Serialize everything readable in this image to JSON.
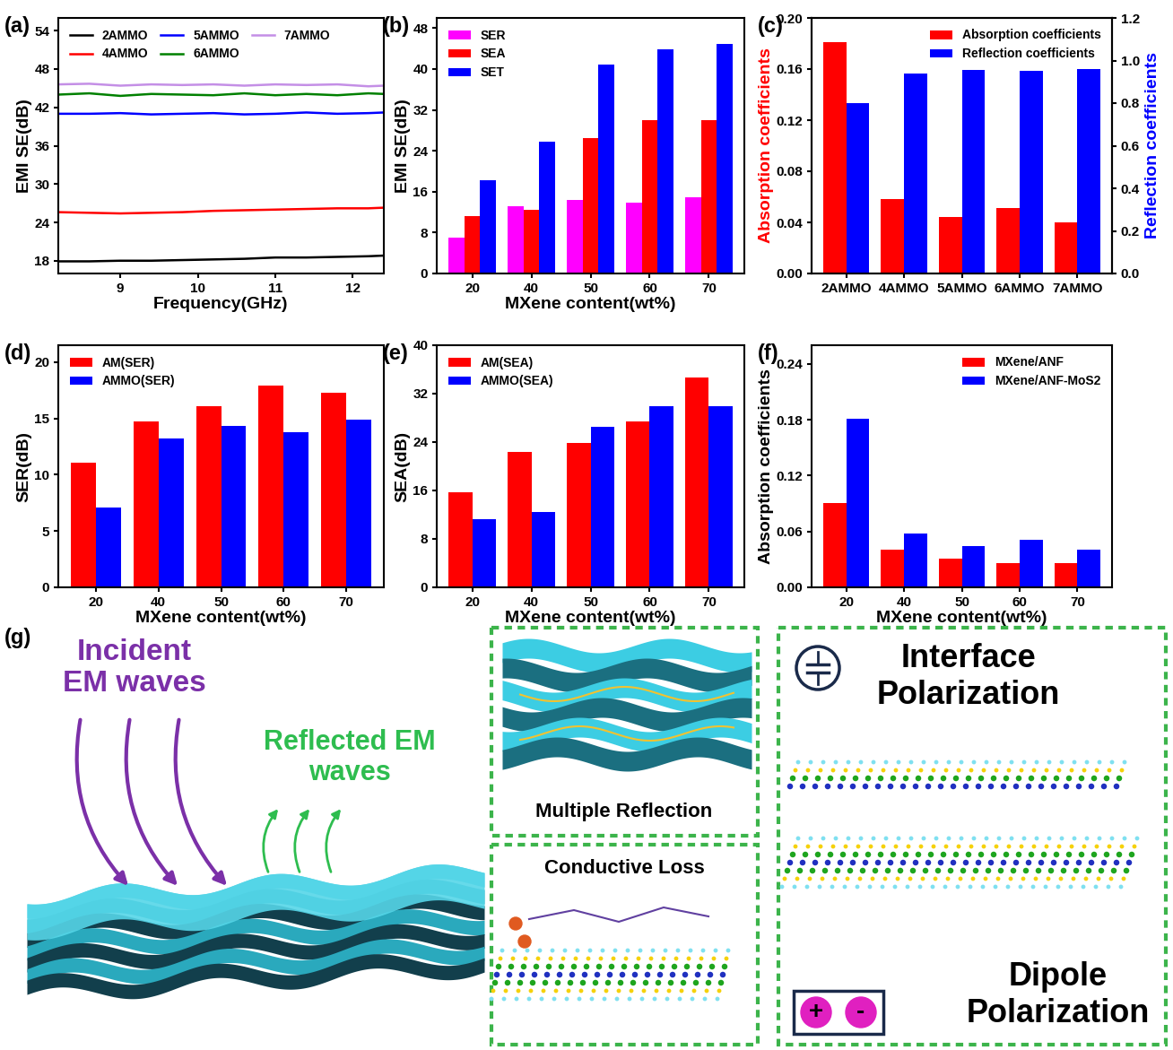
{
  "chart_data": [
    {
      "panel_label": "(a)",
      "type": "line",
      "xlabel": "Frequency(GHz)",
      "ylabel": "EMI SE(dB)",
      "x": [
        8.2,
        8.6,
        9.0,
        9.4,
        9.8,
        10.2,
        10.6,
        11.0,
        11.4,
        11.8,
        12.2,
        12.4
      ],
      "series": [
        {
          "name": "2AMMO",
          "color": "#000000",
          "line_style": "solid",
          "values": [
            17.9,
            17.9,
            18.0,
            18.0,
            18.1,
            18.2,
            18.3,
            18.5,
            18.5,
            18.6,
            18.7,
            18.8
          ]
        },
        {
          "name": "4AMMO",
          "color": "#ff0000",
          "line_style": "solid",
          "values": [
            25.6,
            25.5,
            25.4,
            25.5,
            25.6,
            25.8,
            25.9,
            26.0,
            26.1,
            26.2,
            26.2,
            26.3
          ]
        },
        {
          "name": "5AMMO",
          "color": "#0000ff",
          "line_style": "solid",
          "values": [
            41.0,
            41.0,
            41.1,
            40.9,
            41.0,
            41.1,
            40.9,
            41.0,
            41.2,
            41.0,
            41.1,
            41.2
          ]
        },
        {
          "name": "6AMMO",
          "color": "#008000",
          "line_style": "solid",
          "values": [
            44.0,
            44.2,
            43.8,
            44.1,
            44.0,
            43.9,
            44.2,
            43.9,
            44.1,
            43.9,
            44.2,
            44.1
          ]
        },
        {
          "name": "7AMMO",
          "color": "#c48fe6",
          "line_style": "solid",
          "values": [
            45.6,
            45.7,
            45.4,
            45.6,
            45.5,
            45.6,
            45.4,
            45.6,
            45.5,
            45.6,
            45.3,
            45.4
          ]
        }
      ],
      "xlim": [
        8.2,
        12.4
      ],
      "xticks": [
        9,
        10,
        11,
        12
      ],
      "ylim": [
        16,
        56
      ],
      "yticks": [
        18,
        24,
        30,
        36,
        42,
        48,
        54
      ],
      "legend": "upper left"
    },
    {
      "panel_label": "(b)",
      "type": "bar",
      "xlabel": "MXene content(wt%)",
      "ylabel": "EMI SE(dB)",
      "categories": [
        "20",
        "40",
        "50",
        "60",
        "70"
      ],
      "series": [
        {
          "name": "SER",
          "color": "#ff00ff",
          "values": [
            7.0,
            13.2,
            14.3,
            13.8,
            14.9
          ]
        },
        {
          "name": "SEA",
          "color": "#ff0000",
          "values": [
            11.3,
            12.5,
            26.5,
            30.0,
            30.0
          ]
        },
        {
          "name": "SET",
          "color": "#0000ff",
          "values": [
            18.3,
            25.8,
            40.8,
            43.8,
            45.0
          ]
        }
      ],
      "ylim": [
        0,
        50
      ],
      "yticks": [
        0,
        8,
        16,
        24,
        32,
        40,
        48
      ],
      "legend": "upper left"
    },
    {
      "panel_label": "(c)",
      "type": "bar",
      "ylabel": "Absorption coefficients",
      "y2label": "Reflection coefficients",
      "categories": [
        "2AMMO",
        "4AMMO",
        "5AMMO",
        "6AMMO",
        "7AMMO"
      ],
      "series": [
        {
          "name": "Absorption coefficients",
          "color": "#ff0000",
          "values": [
            0.181,
            0.058,
            0.044,
            0.051,
            0.04
          ]
        },
        {
          "name": "Reflection coefficients",
          "color": "#0000ff",
          "axis": "y2",
          "values": [
            0.8,
            0.94,
            0.955,
            0.95,
            0.96
          ]
        }
      ],
      "ylim": [
        0,
        0.2
      ],
      "yticks": [
        {
          "value": 0,
          "label": "0.00"
        },
        {
          "value": 0.04,
          "label": "0.04"
        },
        {
          "value": 0.08,
          "label": "0.08"
        },
        {
          "value": 0.12,
          "label": "0.12"
        },
        {
          "value": 0.16,
          "label": "0.16"
        },
        {
          "value": 0.2,
          "label": "0.20"
        }
      ],
      "y2lim": [
        0,
        1.2
      ],
      "y2ticks": [
        {
          "value": 0,
          "label": "0.0"
        },
        0.2,
        0.4,
        0.6,
        0.8,
        {
          "value": 1,
          "label": "1.0"
        },
        1.2
      ],
      "legend": "upper right"
    },
    {
      "panel_label": "(d)",
      "type": "bar",
      "xlabel": "MXene content(wt%)",
      "ylabel": "SER(dB)",
      "categories": [
        "20",
        "40",
        "50",
        "60",
        "70"
      ],
      "series": [
        {
          "name": "AM(SER)",
          "color": "#ff0000",
          "values": [
            11.1,
            14.7,
            16.1,
            17.9,
            17.3
          ]
        },
        {
          "name": "AMMO(SER)",
          "color": "#0000ff",
          "values": [
            7.1,
            13.2,
            14.3,
            13.8,
            14.9
          ]
        }
      ],
      "ylim": [
        0,
        21.5
      ],
      "yticks": [
        0,
        5,
        10,
        15,
        20
      ],
      "legend": "upper left"
    },
    {
      "panel_label": "(e)",
      "type": "bar",
      "xlabel": "MXene content(wt%)",
      "ylabel": "SEA(dB)",
      "categories": [
        "20",
        "40",
        "50",
        "60",
        "70"
      ],
      "series": [
        {
          "name": "AM(SEA)",
          "color": "#ff0000",
          "values": [
            15.7,
            22.3,
            23.9,
            27.4,
            34.7
          ]
        },
        {
          "name": "AMMO(SEA)",
          "color": "#0000ff",
          "values": [
            11.3,
            12.5,
            26.5,
            30.0,
            30.0
          ]
        }
      ],
      "ylim": [
        0,
        40
      ],
      "yticks": [
        0,
        8,
        16,
        24,
        32,
        40
      ],
      "legend": "upper left"
    },
    {
      "panel_label": "(f)",
      "type": "bar",
      "xlabel": "MXene content(wt%)",
      "ylabel": "Absorption coefficients",
      "categories": [
        "20",
        "40",
        "50",
        "60",
        "70"
      ],
      "series": [
        {
          "name": "MXene/ANF",
          "color": "#ff0000",
          "values": [
            0.091,
            0.04,
            0.031,
            0.026,
            0.026
          ]
        },
        {
          "name": "MXene/ANF-MoS2",
          "color": "#0000ff",
          "values": [
            0.181,
            0.058,
            0.044,
            0.051,
            0.04
          ]
        }
      ],
      "ylim": [
        0,
        0.26
      ],
      "yticks": [
        {
          "value": 0,
          "label": "0.00"
        },
        {
          "value": 0.06,
          "label": "0.06"
        },
        {
          "value": 0.12,
          "label": "0.12"
        },
        {
          "value": 0.18,
          "label": "0.18"
        },
        {
          "value": 0.24,
          "label": "0.24"
        }
      ],
      "legend": "upper right"
    }
  ],
  "diagram": {
    "panel_label": "(g)",
    "incident": "Incident\nEM waves",
    "reflected": "Reflected EM\nwaves",
    "multiple_reflection": "Multiple Reflection",
    "conductive_loss": "Conductive Loss",
    "interface": "Interface\nPolarization",
    "dipole": "Dipole\nPolarization",
    "plus": "+",
    "minus": "-"
  }
}
